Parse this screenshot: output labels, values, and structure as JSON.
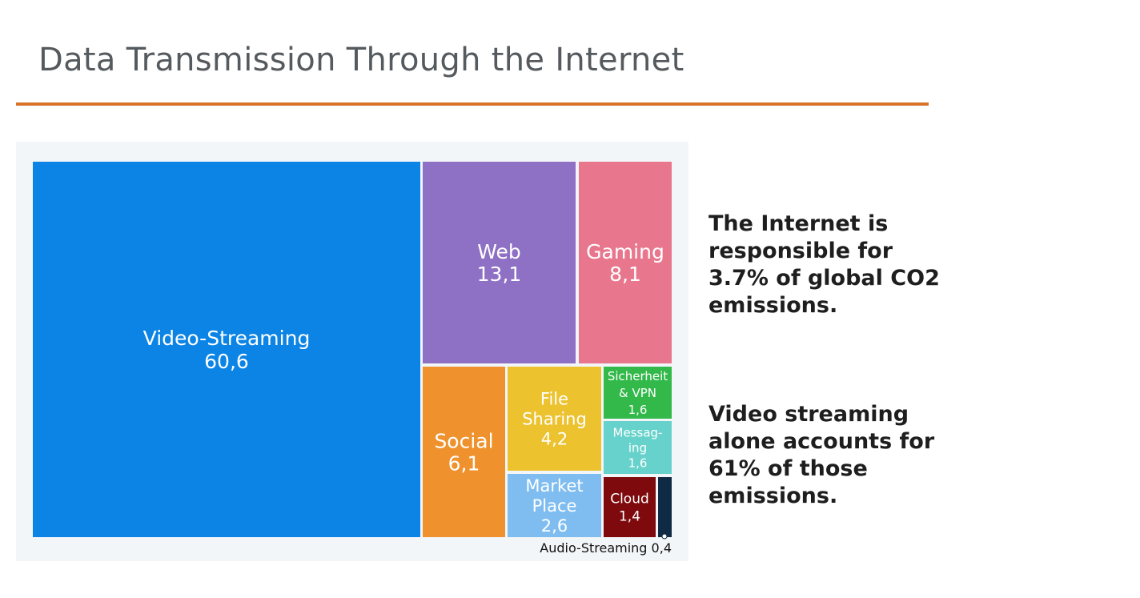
{
  "slide": {
    "title": "Data Transmission Through the Internet"
  },
  "facts": [
    "The Internet is responsible for 3.7% of global CO2 emissions.",
    "Video streaming alone accounts for 61% of those emissions."
  ],
  "colors": {
    "accent_rule": "#d8742a",
    "panel_bg": "#f3f6f9"
  },
  "chart_data": {
    "type": "treemap",
    "title": "",
    "items": [
      {
        "name": "Video-Streaming",
        "label_lines": [
          "Video-Streaming"
        ],
        "value_label": "60,6",
        "value": 60.6,
        "color": "#0b84e6"
      },
      {
        "name": "Web",
        "label_lines": [
          "Web"
        ],
        "value_label": "13,1",
        "value": 13.1,
        "color": "#8e70c4"
      },
      {
        "name": "Gaming",
        "label_lines": [
          "Gaming"
        ],
        "value_label": "8,1",
        "value": 8.1,
        "color": "#e8778e"
      },
      {
        "name": "Social",
        "label_lines": [
          "Social"
        ],
        "value_label": "6,1",
        "value": 6.1,
        "color": "#ef922d"
      },
      {
        "name": "File Sharing",
        "label_lines": [
          "File",
          "Sharing"
        ],
        "value_label": "4,2",
        "value": 4.2,
        "color": "#ecc22f"
      },
      {
        "name": "Market Place",
        "label_lines": [
          "Market",
          "Place"
        ],
        "value_label": "2,6",
        "value": 2.6,
        "color": "#7fbdf0"
      },
      {
        "name": "Sicherheit & VPN",
        "label_lines": [
          "Sicherheit",
          "& VPN"
        ],
        "value_label": "1,6",
        "value": 1.6,
        "color": "#33b94a"
      },
      {
        "name": "Messaging",
        "label_lines": [
          "Messag-",
          "ing"
        ],
        "value_label": "1,6",
        "value": 1.6,
        "color": "#67d2cb"
      },
      {
        "name": "Cloud",
        "label_lines": [
          "Cloud"
        ],
        "value_label": "1,4",
        "value": 1.4,
        "color": "#7e0a0d"
      },
      {
        "name": "Audio-Streaming",
        "label_lines": [
          "Audio-Streaming"
        ],
        "value_label": "0,4",
        "value": 0.4,
        "color": "#0f2a45"
      }
    ],
    "callout": "Audio-Streaming 0,4"
  }
}
